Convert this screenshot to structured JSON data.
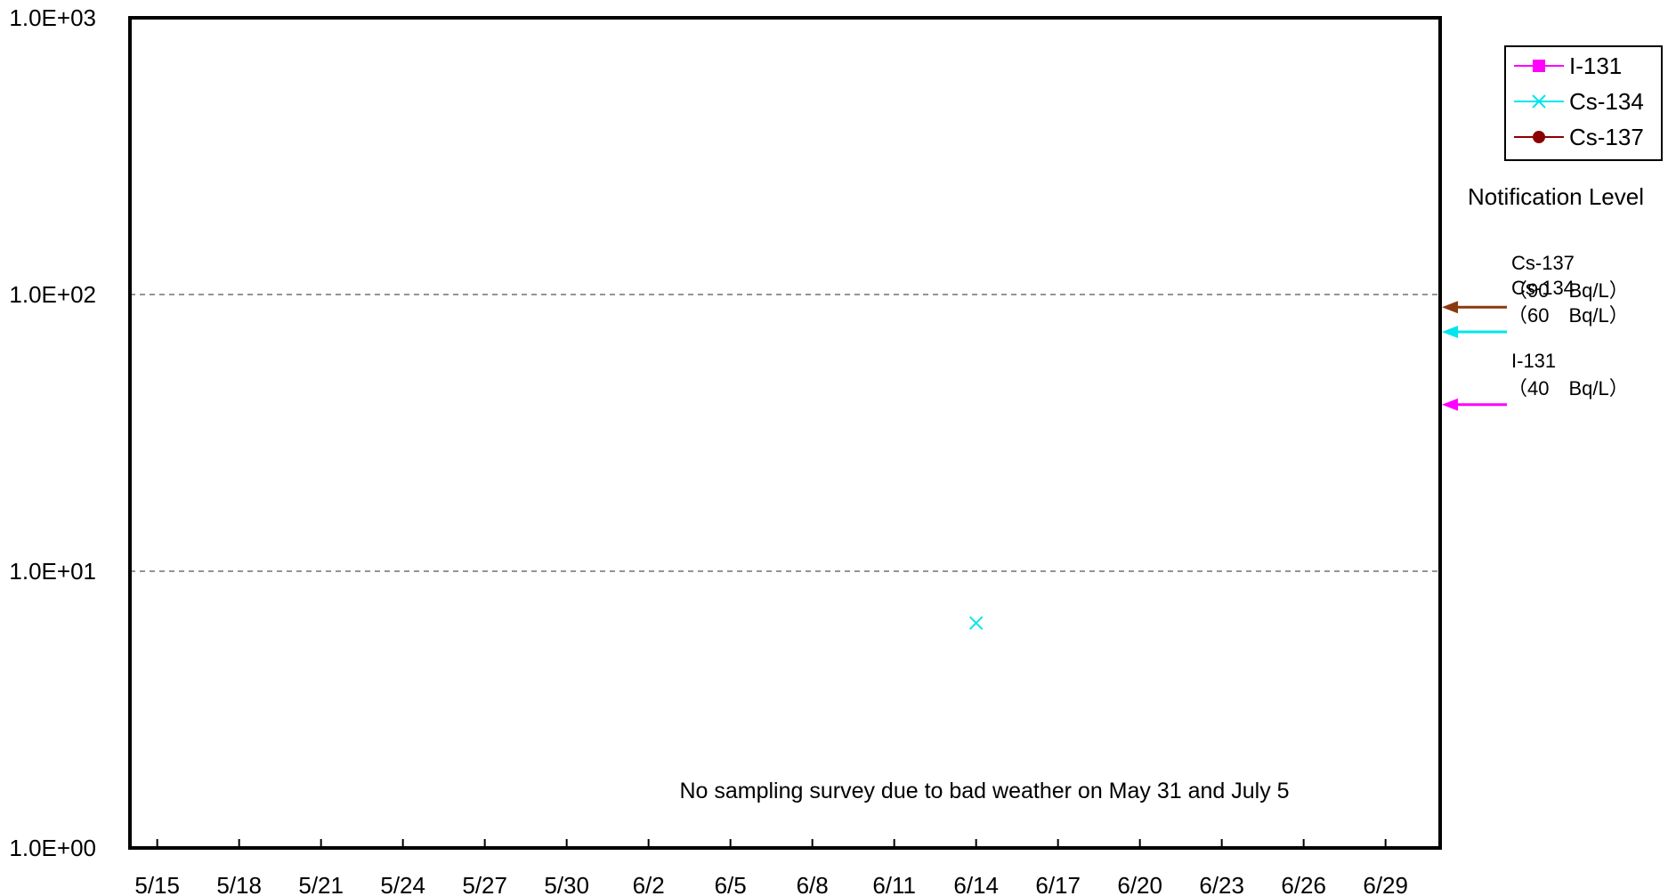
{
  "chart_data": {
    "type": "scatter",
    "y_scale": "log",
    "ylim": [
      1,
      1000
    ],
    "y_tick_labels": [
      "1.0E+00",
      "1.0E+01",
      "1.0E+02",
      "1.0E+03"
    ],
    "x_tick_labels": [
      "5/15",
      "5/18",
      "5/21",
      "5/24",
      "5/27",
      "5/30",
      "6/2",
      "6/5",
      "6/8",
      "6/11",
      "6/14",
      "6/17",
      "6/20",
      "6/23",
      "6/26",
      "6/29"
    ],
    "xlim": [
      "5/14",
      "7/1"
    ],
    "grid": "dashed horizontal lines at 1.0E+01 and 1.0E+02",
    "legend_position": "top-right",
    "series": [
      {
        "name": "I-131",
        "color": "#ff00ff",
        "marker": "square",
        "points": []
      },
      {
        "name": "Cs-134",
        "color": "#00e5ee",
        "marker": "x",
        "points": [
          {
            "x": "6/14",
            "y": 6.5
          }
        ]
      },
      {
        "name": "Cs-137",
        "color": "#8b0000",
        "marker": "circle",
        "points": []
      }
    ],
    "annotation": "No sampling survey due to bad weather on May 31 and July 5",
    "notification_title": "Notification Level",
    "notification_levels": [
      {
        "nuclide": "Cs-137",
        "label": "（90　Bq/L）",
        "value": 90,
        "color": "#8b3a0f"
      },
      {
        "nuclide": "Cs-134",
        "label": "（60　Bq/L）",
        "value": 60,
        "color": "#00e5ee"
      },
      {
        "nuclide": "I-131",
        "label": "（40　Bq/L）",
        "value": 40,
        "color": "#ff00ff"
      }
    ]
  }
}
